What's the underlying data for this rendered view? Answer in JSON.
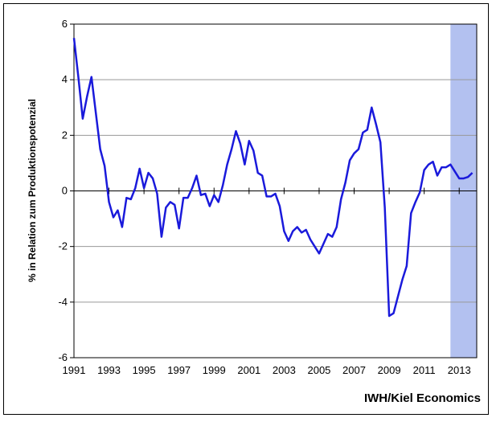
{
  "chart_data": {
    "type": "line",
    "y_label": "% in Relation zum Produktionspotenzial",
    "source": "IWH/Kiel Economics",
    "x": [
      1991,
      1991.25,
      1991.5,
      1991.75,
      1992,
      1992.25,
      1992.5,
      1992.75,
      1993,
      1993.25,
      1993.5,
      1993.75,
      1994,
      1994.25,
      1994.5,
      1994.75,
      1995,
      1995.25,
      1995.5,
      1995.75,
      1996,
      1996.25,
      1996.5,
      1996.75,
      1997,
      1997.25,
      1997.5,
      1997.75,
      1998,
      1998.25,
      1998.5,
      1998.75,
      1999,
      1999.25,
      1999.5,
      1999.75,
      2000,
      2000.25,
      2000.5,
      2000.75,
      2001,
      2001.25,
      2001.5,
      2001.75,
      2002,
      2002.25,
      2002.5,
      2002.75,
      2003,
      2003.25,
      2003.5,
      2003.75,
      2004,
      2004.25,
      2004.5,
      2004.75,
      2005,
      2005.25,
      2005.5,
      2005.75,
      2006,
      2006.25,
      2006.5,
      2006.75,
      2007,
      2007.25,
      2007.5,
      2007.75,
      2008,
      2008.25,
      2008.5,
      2008.75,
      2009,
      2009.25,
      2009.5,
      2009.75,
      2010,
      2010.25,
      2010.5,
      2010.75,
      2011,
      2011.25,
      2011.5,
      2011.75,
      2012,
      2012.25,
      2012.5,
      2012.75,
      2013,
      2013.25,
      2013.5,
      2013.75
    ],
    "series": [
      {
        "color": "#1a1adb",
        "values": [
          5.5,
          4.1,
          2.6,
          3.4,
          4.1,
          2.8,
          1.5,
          0.9,
          -0.4,
          -0.95,
          -0.7,
          -1.3,
          -0.25,
          -0.3,
          0.1,
          0.8,
          0.1,
          0.65,
          0.45,
          -0.1,
          -1.65,
          -0.6,
          -0.4,
          -0.5,
          -1.35,
          -0.25,
          -0.25,
          0.1,
          0.55,
          -0.15,
          -0.1,
          -0.55,
          -0.15,
          -0.4,
          0.2,
          0.95,
          1.5,
          2.15,
          1.7,
          0.95,
          1.8,
          1.45,
          0.65,
          0.55,
          -0.2,
          -0.2,
          -0.1,
          -0.55,
          -1.45,
          -1.8,
          -1.45,
          -1.3,
          -1.5,
          -1.4,
          -1.75,
          -2.0,
          -2.25,
          -1.9,
          -1.55,
          -1.65,
          -1.3,
          -0.3,
          0.3,
          1.1,
          1.35,
          1.5,
          2.1,
          2.2,
          3.0,
          2.4,
          1.75,
          -0.6,
          -4.5,
          -4.4,
          -3.8,
          -3.2,
          -2.7,
          -0.8,
          -0.4,
          -0.05,
          0.75,
          0.95,
          1.05,
          0.55,
          0.85,
          0.85,
          0.95,
          0.7,
          0.45,
          0.45,
          0.5,
          0.65
        ]
      }
    ],
    "shaded_xrange": [
      2012.5,
      2014
    ],
    "shade_color": "#b3c1f0",
    "xlim": [
      1991,
      2014
    ],
    "xticks": [
      1991,
      1993,
      1995,
      1997,
      1999,
      2001,
      2003,
      2005,
      2007,
      2009,
      2011,
      2013
    ],
    "ylim": [
      -6,
      6
    ],
    "yticks": [
      -6,
      -4,
      -2,
      0,
      2,
      4,
      6
    ],
    "grid": true
  }
}
